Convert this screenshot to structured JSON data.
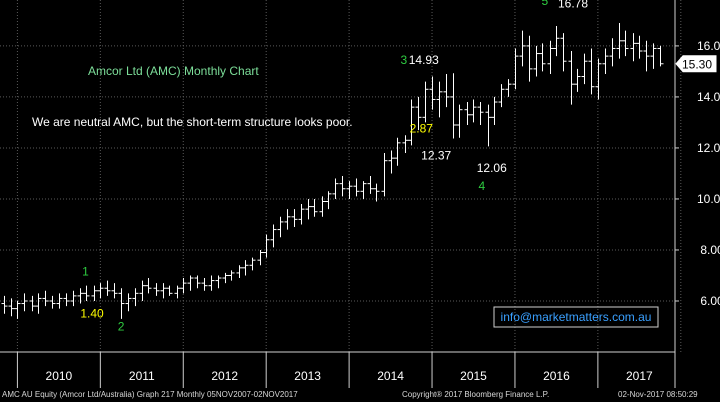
{
  "chart_data": {
    "type": "ohlc",
    "title": "Amcor Ltd (AMC) Monthly Chart",
    "comment": "We are neutral AMC, but the short-term structure looks poor.",
    "contact": "info@marketmatters.com.au",
    "last_price_label": "15.30",
    "last_price": 15.3,
    "x_years": [
      "2010",
      "2011",
      "2012",
      "2013",
      "2014",
      "2015",
      "2016",
      "2017"
    ],
    "y_ticks": [
      6,
      8,
      10,
      12,
      14,
      16
    ],
    "y_tick_labels": [
      "6.00",
      "8.00",
      "10.00",
      "12.00",
      "14.00",
      "16.00"
    ],
    "ylim": [
      4.0,
      17.8
    ],
    "xlim": [
      2009.79,
      2017.93
    ],
    "grid": true,
    "annotations": [
      {
        "text": "1",
        "x": 2010.82,
        "y": 7.0,
        "color": "#2ecc40"
      },
      {
        "text": "1.40",
        "x": 2010.9,
        "y": 5.35,
        "color": "#ffff00"
      },
      {
        "text": "2",
        "x": 2011.25,
        "y": 4.85,
        "color": "#2ecc40"
      },
      {
        "text": "3",
        "x": 2014.66,
        "y": 15.3,
        "color": "#2ecc40"
      },
      {
        "text": "14.93",
        "x": 2014.9,
        "y": 15.3,
        "color": "#ffffff"
      },
      {
        "text": "2.87",
        "x": 2014.87,
        "y": 12.6,
        "color": "#ffff00"
      },
      {
        "text": "12.37",
        "x": 2015.05,
        "y": 11.55,
        "color": "#ffffff"
      },
      {
        "text": "12.06",
        "x": 2015.72,
        "y": 11.05,
        "color": "#ffffff"
      },
      {
        "text": "4",
        "x": 2015.6,
        "y": 10.35,
        "color": "#2ecc40"
      },
      {
        "text": "5",
        "x": 2016.36,
        "y": 17.6,
        "color": "#2ecc40"
      },
      {
        "text": "16.78",
        "x": 2016.7,
        "y": 17.5,
        "color": "#ffffff"
      }
    ],
    "bars": [
      {
        "x": 2009.84,
        "o": 5.9,
        "h": 6.2,
        "l": 5.5,
        "c": 5.8
      },
      {
        "x": 2009.92,
        "o": 5.8,
        "h": 6.1,
        "l": 5.4,
        "c": 5.7
      },
      {
        "x": 2010.0,
        "o": 5.7,
        "h": 6.0,
        "l": 5.3,
        "c": 5.9
      },
      {
        "x": 2010.08,
        "o": 5.9,
        "h": 6.3,
        "l": 5.6,
        "c": 6.0
      },
      {
        "x": 2010.17,
        "o": 6.0,
        "h": 6.2,
        "l": 5.6,
        "c": 5.8
      },
      {
        "x": 2010.25,
        "o": 5.8,
        "h": 6.3,
        "l": 5.5,
        "c": 6.1
      },
      {
        "x": 2010.33,
        "o": 6.1,
        "h": 6.4,
        "l": 5.8,
        "c": 6.0
      },
      {
        "x": 2010.42,
        "o": 6.0,
        "h": 6.2,
        "l": 5.7,
        "c": 5.9
      },
      {
        "x": 2010.5,
        "o": 5.9,
        "h": 6.3,
        "l": 5.7,
        "c": 6.1
      },
      {
        "x": 2010.58,
        "o": 6.1,
        "h": 6.3,
        "l": 5.8,
        "c": 6.0
      },
      {
        "x": 2010.67,
        "o": 6.0,
        "h": 6.4,
        "l": 5.8,
        "c": 6.2
      },
      {
        "x": 2010.75,
        "o": 6.2,
        "h": 6.5,
        "l": 5.9,
        "c": 6.3
      },
      {
        "x": 2010.83,
        "o": 6.3,
        "h": 6.6,
        "l": 6.0,
        "c": 6.2
      },
      {
        "x": 2010.92,
        "o": 6.2,
        "h": 6.6,
        "l": 6.0,
        "c": 6.4
      },
      {
        "x": 2011.0,
        "o": 6.4,
        "h": 6.7,
        "l": 6.1,
        "c": 6.5
      },
      {
        "x": 2011.08,
        "o": 6.5,
        "h": 6.8,
        "l": 6.2,
        "c": 6.4
      },
      {
        "x": 2011.17,
        "o": 6.4,
        "h": 6.7,
        "l": 6.1,
        "c": 6.3
      },
      {
        "x": 2011.25,
        "o": 6.3,
        "h": 6.5,
        "l": 5.3,
        "c": 5.9
      },
      {
        "x": 2011.33,
        "o": 5.9,
        "h": 6.3,
        "l": 5.6,
        "c": 6.1
      },
      {
        "x": 2011.42,
        "o": 6.1,
        "h": 6.5,
        "l": 5.8,
        "c": 6.3
      },
      {
        "x": 2011.5,
        "o": 6.3,
        "h": 6.8,
        "l": 6.0,
        "c": 6.6
      },
      {
        "x": 2011.58,
        "o": 6.6,
        "h": 6.9,
        "l": 6.3,
        "c": 6.5
      },
      {
        "x": 2011.67,
        "o": 6.5,
        "h": 6.7,
        "l": 6.2,
        "c": 6.4
      },
      {
        "x": 2011.75,
        "o": 6.4,
        "h": 6.7,
        "l": 6.1,
        "c": 6.5
      },
      {
        "x": 2011.83,
        "o": 6.5,
        "h": 6.6,
        "l": 6.2,
        "c": 6.3
      },
      {
        "x": 2011.92,
        "o": 6.3,
        "h": 6.6,
        "l": 6.1,
        "c": 6.5
      },
      {
        "x": 2012.0,
        "o": 6.5,
        "h": 6.9,
        "l": 6.3,
        "c": 6.7
      },
      {
        "x": 2012.08,
        "o": 6.7,
        "h": 7.0,
        "l": 6.4,
        "c": 6.9
      },
      {
        "x": 2012.17,
        "o": 6.9,
        "h": 7.0,
        "l": 6.5,
        "c": 6.7
      },
      {
        "x": 2012.25,
        "o": 6.7,
        "h": 6.9,
        "l": 6.4,
        "c": 6.6
      },
      {
        "x": 2012.33,
        "o": 6.6,
        "h": 7.0,
        "l": 6.4,
        "c": 6.8
      },
      {
        "x": 2012.42,
        "o": 6.8,
        "h": 7.0,
        "l": 6.5,
        "c": 6.9
      },
      {
        "x": 2012.5,
        "o": 6.9,
        "h": 7.1,
        "l": 6.7,
        "c": 7.0
      },
      {
        "x": 2012.58,
        "o": 7.0,
        "h": 7.2,
        "l": 6.8,
        "c": 7.1
      },
      {
        "x": 2012.67,
        "o": 7.1,
        "h": 7.4,
        "l": 6.9,
        "c": 7.3
      },
      {
        "x": 2012.75,
        "o": 7.3,
        "h": 7.6,
        "l": 7.0,
        "c": 7.4
      },
      {
        "x": 2012.83,
        "o": 7.4,
        "h": 7.7,
        "l": 7.2,
        "c": 7.6
      },
      {
        "x": 2012.92,
        "o": 7.6,
        "h": 8.0,
        "l": 7.4,
        "c": 7.9
      },
      {
        "x": 2013.0,
        "o": 7.9,
        "h": 8.6,
        "l": 7.7,
        "c": 8.4
      },
      {
        "x": 2013.08,
        "o": 8.4,
        "h": 9.0,
        "l": 8.1,
        "c": 8.8
      },
      {
        "x": 2013.17,
        "o": 8.8,
        "h": 9.3,
        "l": 8.5,
        "c": 9.1
      },
      {
        "x": 2013.25,
        "o": 9.1,
        "h": 9.6,
        "l": 8.8,
        "c": 9.3
      },
      {
        "x": 2013.33,
        "o": 9.3,
        "h": 9.6,
        "l": 8.9,
        "c": 9.2
      },
      {
        "x": 2013.42,
        "o": 9.2,
        "h": 9.8,
        "l": 9.0,
        "c": 9.6
      },
      {
        "x": 2013.5,
        "o": 9.6,
        "h": 10.0,
        "l": 9.2,
        "c": 9.7
      },
      {
        "x": 2013.58,
        "o": 9.7,
        "h": 10.0,
        "l": 9.3,
        "c": 9.5
      },
      {
        "x": 2013.67,
        "o": 9.5,
        "h": 10.1,
        "l": 9.3,
        "c": 9.9
      },
      {
        "x": 2013.75,
        "o": 9.9,
        "h": 10.3,
        "l": 9.6,
        "c": 10.2
      },
      {
        "x": 2013.83,
        "o": 10.2,
        "h": 10.8,
        "l": 10.0,
        "c": 10.6
      },
      {
        "x": 2013.92,
        "o": 10.6,
        "h": 10.9,
        "l": 10.1,
        "c": 10.4
      },
      {
        "x": 2014.0,
        "o": 10.4,
        "h": 10.7,
        "l": 10.0,
        "c": 10.5
      },
      {
        "x": 2014.08,
        "o": 10.5,
        "h": 10.8,
        "l": 10.1,
        "c": 10.3
      },
      {
        "x": 2014.17,
        "o": 10.3,
        "h": 10.7,
        "l": 10.0,
        "c": 10.6
      },
      {
        "x": 2014.25,
        "o": 10.6,
        "h": 10.9,
        "l": 10.2,
        "c": 10.4
      },
      {
        "x": 2014.33,
        "o": 10.4,
        "h": 10.6,
        "l": 9.9,
        "c": 10.3
      },
      {
        "x": 2014.42,
        "o": 10.3,
        "h": 11.8,
        "l": 10.1,
        "c": 11.5
      },
      {
        "x": 2014.5,
        "o": 11.5,
        "h": 11.9,
        "l": 11.0,
        "c": 11.6
      },
      {
        "x": 2014.58,
        "o": 11.6,
        "h": 12.4,
        "l": 11.3,
        "c": 12.2
      },
      {
        "x": 2014.67,
        "o": 12.2,
        "h": 12.5,
        "l": 11.8,
        "c": 12.3
      },
      {
        "x": 2014.75,
        "o": 12.3,
        "h": 13.9,
        "l": 12.1,
        "c": 13.6
      },
      {
        "x": 2014.83,
        "o": 13.6,
        "h": 14.0,
        "l": 12.7,
        "c": 13.2
      },
      {
        "x": 2014.92,
        "o": 13.2,
        "h": 14.6,
        "l": 13.0,
        "c": 14.3
      },
      {
        "x": 2015.0,
        "o": 14.3,
        "h": 14.8,
        "l": 13.5,
        "c": 13.9
      },
      {
        "x": 2015.08,
        "o": 13.9,
        "h": 14.6,
        "l": 13.2,
        "c": 14.2
      },
      {
        "x": 2015.17,
        "o": 14.2,
        "h": 14.9,
        "l": 13.6,
        "c": 14.0
      },
      {
        "x": 2015.25,
        "o": 14.0,
        "h": 14.93,
        "l": 12.37,
        "c": 12.9
      },
      {
        "x": 2015.33,
        "o": 12.9,
        "h": 13.7,
        "l": 12.4,
        "c": 13.5
      },
      {
        "x": 2015.42,
        "o": 13.5,
        "h": 13.8,
        "l": 12.9,
        "c": 13.3
      },
      {
        "x": 2015.5,
        "o": 13.3,
        "h": 13.9,
        "l": 13.0,
        "c": 13.6
      },
      {
        "x": 2015.58,
        "o": 13.6,
        "h": 13.8,
        "l": 12.9,
        "c": 13.4
      },
      {
        "x": 2015.67,
        "o": 13.4,
        "h": 13.7,
        "l": 12.06,
        "c": 13.2
      },
      {
        "x": 2015.75,
        "o": 13.2,
        "h": 14.0,
        "l": 12.9,
        "c": 13.8
      },
      {
        "x": 2015.83,
        "o": 13.8,
        "h": 14.5,
        "l": 13.6,
        "c": 14.3
      },
      {
        "x": 2015.92,
        "o": 14.3,
        "h": 14.7,
        "l": 14.0,
        "c": 14.5
      },
      {
        "x": 2016.0,
        "o": 14.5,
        "h": 15.9,
        "l": 14.3,
        "c": 15.6
      },
      {
        "x": 2016.08,
        "o": 15.6,
        "h": 16.6,
        "l": 15.2,
        "c": 16.0
      },
      {
        "x": 2016.17,
        "o": 16.0,
        "h": 16.4,
        "l": 14.6,
        "c": 15.1
      },
      {
        "x": 2016.25,
        "o": 15.1,
        "h": 16.0,
        "l": 14.8,
        "c": 15.7
      },
      {
        "x": 2016.33,
        "o": 15.7,
        "h": 16.1,
        "l": 15.0,
        "c": 15.3
      },
      {
        "x": 2016.42,
        "o": 15.3,
        "h": 16.2,
        "l": 14.9,
        "c": 15.9
      },
      {
        "x": 2016.5,
        "o": 15.9,
        "h": 16.78,
        "l": 15.6,
        "c": 16.3
      },
      {
        "x": 2016.58,
        "o": 16.3,
        "h": 16.5,
        "l": 15.0,
        "c": 15.4
      },
      {
        "x": 2016.67,
        "o": 15.4,
        "h": 15.8,
        "l": 13.7,
        "c": 14.5
      },
      {
        "x": 2016.75,
        "o": 14.5,
        "h": 15.1,
        "l": 14.2,
        "c": 14.8
      },
      {
        "x": 2016.83,
        "o": 14.8,
        "h": 15.7,
        "l": 14.5,
        "c": 15.4
      },
      {
        "x": 2016.92,
        "o": 15.4,
        "h": 15.9,
        "l": 14.1,
        "c": 14.4
      },
      {
        "x": 2017.0,
        "o": 14.4,
        "h": 15.5,
        "l": 13.9,
        "c": 15.3
      },
      {
        "x": 2017.08,
        "o": 15.3,
        "h": 15.9,
        "l": 14.9,
        "c": 15.6
      },
      {
        "x": 2017.17,
        "o": 15.6,
        "h": 16.3,
        "l": 15.2,
        "c": 15.9
      },
      {
        "x": 2017.25,
        "o": 15.9,
        "h": 16.9,
        "l": 15.5,
        "c": 16.2
      },
      {
        "x": 2017.33,
        "o": 16.2,
        "h": 16.6,
        "l": 15.6,
        "c": 15.9
      },
      {
        "x": 2017.42,
        "o": 15.9,
        "h": 16.5,
        "l": 15.4,
        "c": 16.1
      },
      {
        "x": 2017.5,
        "o": 16.1,
        "h": 16.4,
        "l": 15.5,
        "c": 15.8
      },
      {
        "x": 2017.58,
        "o": 15.8,
        "h": 16.2,
        "l": 15.0,
        "c": 15.6
      },
      {
        "x": 2017.67,
        "o": 15.6,
        "h": 16.1,
        "l": 15.1,
        "c": 15.9
      },
      {
        "x": 2017.75,
        "o": 15.9,
        "h": 16.0,
        "l": 15.2,
        "c": 15.3
      }
    ]
  },
  "footer": {
    "left": "AMC AU Equity (Amcor Ltd/Australia) Graph 217  Monthly 05NOV2007-02NOV2017",
    "middle": "Copyright® 2017 Bloomberg Finance L.P.",
    "right": "02-Nov-2017 08:50:29"
  },
  "colors": {
    "background": "#000000",
    "bars": "#ffffff",
    "grid": "#5a5a5a",
    "title": "#7ddf9a",
    "contact": "#3aa0ff"
  }
}
